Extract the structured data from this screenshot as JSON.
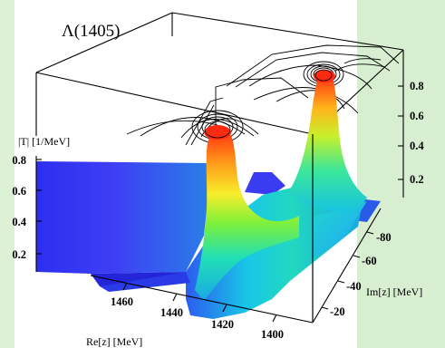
{
  "title": "Λ(1405)",
  "z_axis": {
    "label": "|T| [1/MeV]",
    "ticks": [
      "0.8",
      "0.6",
      "0.4",
      "0.2"
    ]
  },
  "back_axis": {
    "ticks": [
      "0.8",
      "0.6",
      "0.4",
      "0.2"
    ]
  },
  "re_axis": {
    "label": "Re[z] [MeV]",
    "ticks": [
      "1460",
      "1440",
      "1420",
      "1400"
    ]
  },
  "im_axis": {
    "label": "Im[z] [MeV]",
    "ticks": [
      "-80",
      "-60",
      "-40",
      "-20"
    ]
  },
  "colors": {
    "low": "#2727ee",
    "mid": "#19d4c8",
    "high": "#ff2a10",
    "background": "#d9efd2"
  }
}
